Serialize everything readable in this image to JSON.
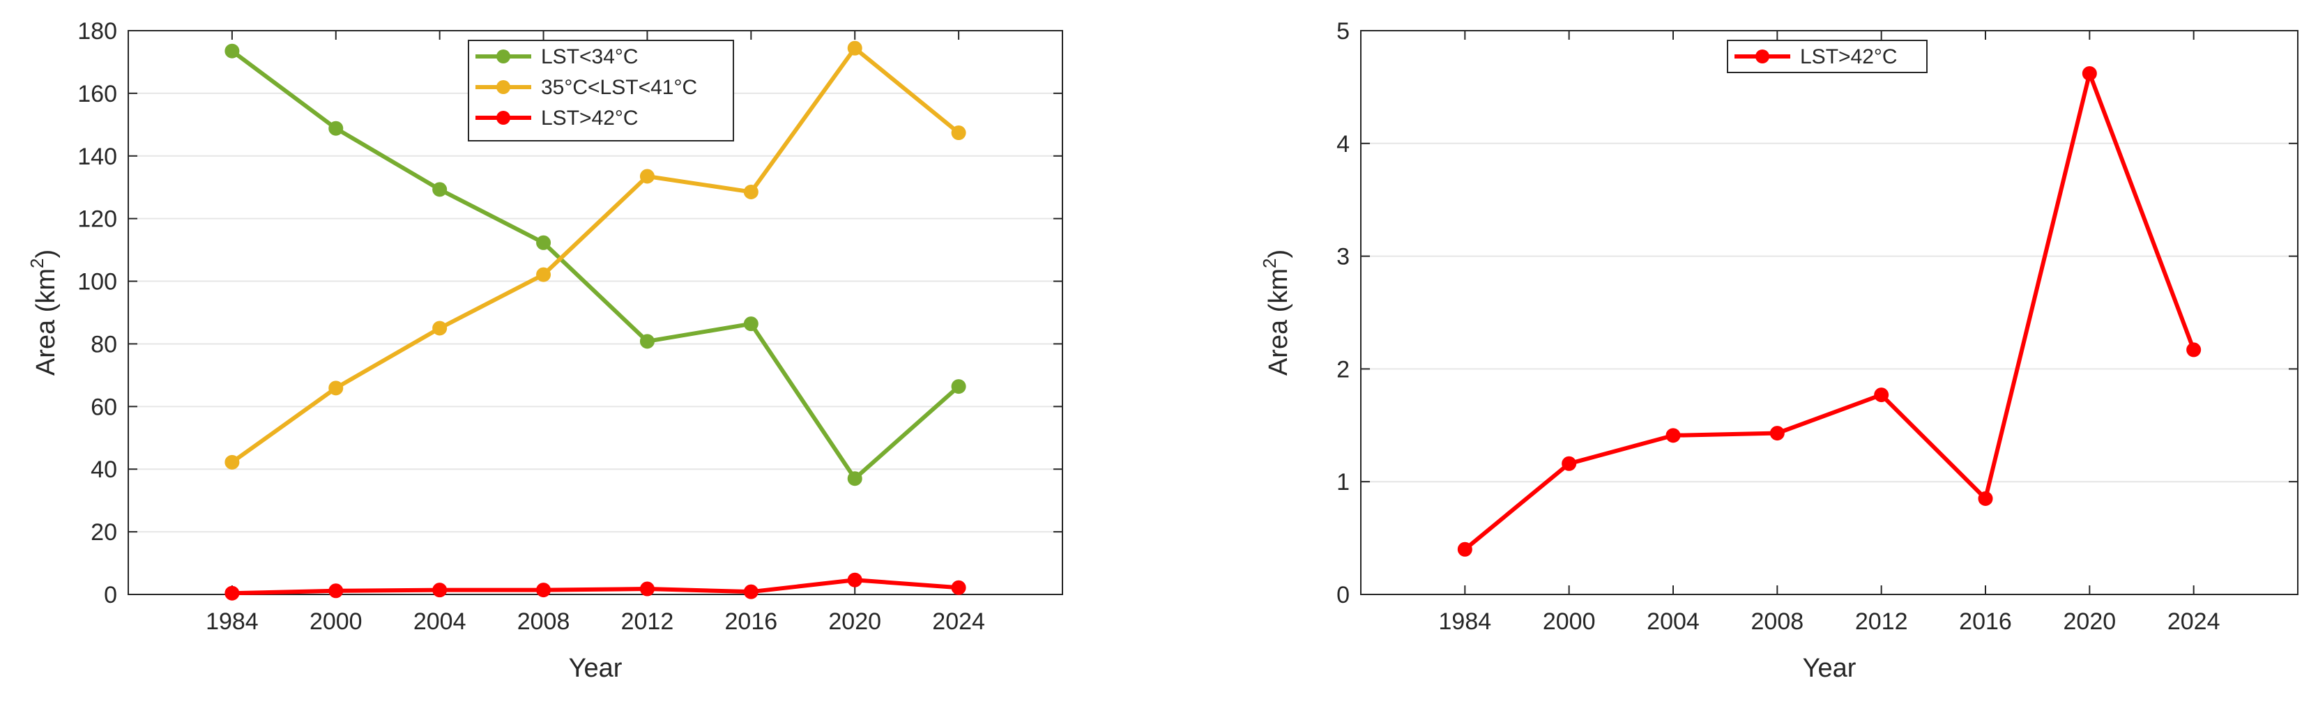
{
  "chart_data": [
    {
      "type": "line",
      "title": "",
      "xlabel": "Year",
      "ylabel": "Area (km",
      "ylabel_sup": "2",
      "ylabel_close": ")",
      "categories": [
        "1984",
        "2000",
        "2004",
        "2008",
        "2012",
        "2016",
        "2020",
        "2024"
      ],
      "ylim": [
        0,
        180
      ],
      "yticks": [
        0,
        20,
        40,
        60,
        80,
        100,
        120,
        140,
        160,
        180
      ],
      "grid": "horizontal",
      "legend": "top-center",
      "series": [
        {
          "name": "LST<34°C",
          "color": "#77ac30",
          "values": [
            173.5,
            148.8,
            129.3,
            112.3,
            80.8,
            86.4,
            37.0,
            66.4
          ]
        },
        {
          "name": "35°C<LST<41°C",
          "color": "#edb120",
          "values": [
            42.2,
            65.9,
            85.0,
            102.1,
            133.5,
            128.5,
            174.4,
            147.4
          ]
        },
        {
          "name": "LST>42°C",
          "color": "#ff0000",
          "values": [
            0.4,
            1.16,
            1.41,
            1.43,
            1.77,
            0.85,
            4.62,
            2.17
          ]
        }
      ]
    },
    {
      "type": "line",
      "title": "",
      "xlabel": "Year",
      "ylabel": "Area (km",
      "ylabel_sup": "2",
      "ylabel_close": ")",
      "categories": [
        "1984",
        "2000",
        "2004",
        "2008",
        "2012",
        "2016",
        "2020",
        "2024"
      ],
      "ylim": [
        0,
        5
      ],
      "yticks": [
        0,
        1,
        2,
        3,
        4,
        5
      ],
      "grid": "horizontal",
      "legend": "top-center",
      "series": [
        {
          "name": "LST>42°C",
          "color": "#ff0000",
          "values": [
            0.4,
            1.16,
            1.41,
            1.43,
            1.77,
            0.85,
            4.62,
            2.17
          ]
        }
      ]
    }
  ]
}
